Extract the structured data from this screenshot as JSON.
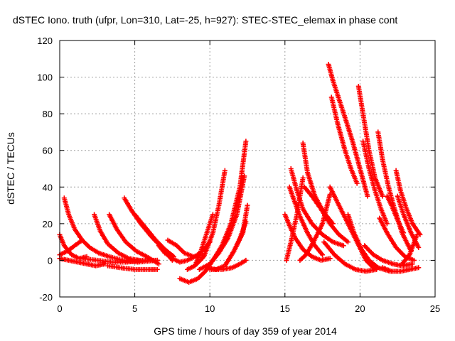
{
  "chart_data": {
    "type": "scatter",
    "title": "dSTEC Iono. truth (ufpr, Lon=310, Lat=-25, h=927): STEC-STEC_elemax in phase cont",
    "xlabel": "GPS time / hours of day 359 of year 2014",
    "ylabel": "dSTEC  / TECUs",
    "xlim": [
      0,
      25
    ],
    "ylim": [
      -20,
      120
    ],
    "xticks": [
      0,
      5,
      10,
      15,
      20,
      25
    ],
    "yticks": [
      -20,
      0,
      20,
      40,
      60,
      80,
      100,
      120
    ],
    "grid": true,
    "marker": "+",
    "series_color": "#ff0000",
    "series": [
      {
        "x": [
          0.0,
          0.3,
          0.8,
          1.3,
          1.8
        ],
        "y": [
          14,
          8,
          3,
          1,
          2
        ]
      },
      {
        "x": [
          0.0,
          0.5,
          1.0,
          1.5
        ],
        "y": [
          3,
          5,
          8,
          11
        ]
      },
      {
        "x": [
          0.0,
          0.6,
          1.2,
          1.8,
          2.4,
          3.0
        ],
        "y": [
          1,
          0,
          -1,
          -2,
          -3,
          -2
        ]
      },
      {
        "x": [
          0.3,
          0.6,
          1.0,
          1.5,
          2.0,
          2.6,
          3.3,
          4.2,
          5.2,
          6.5
        ],
        "y": [
          34,
          25,
          17,
          11,
          7,
          4,
          2,
          0,
          -1,
          0
        ]
      },
      {
        "x": [
          2.3,
          2.7,
          3.2,
          3.9,
          4.6,
          5.3
        ],
        "y": [
          25,
          16,
          9,
          4,
          1,
          0
        ]
      },
      {
        "x": [
          3.3,
          3.8,
          4.4,
          5.1,
          5.8,
          6.6
        ],
        "y": [
          25,
          17,
          10,
          5,
          2,
          -2
        ]
      },
      {
        "x": [
          4.3,
          4.8,
          5.4,
          6.1,
          6.8,
          7.5
        ],
        "y": [
          34,
          27,
          20,
          13,
          7,
          0
        ]
      },
      {
        "x": [
          5.0,
          5.7,
          6.4,
          7.0,
          7.6
        ],
        "y": [
          25,
          18,
          11,
          6,
          2
        ]
      },
      {
        "x": [
          3.2,
          4.0,
          5.0,
          6.0,
          6.5
        ],
        "y": [
          -3,
          -4,
          -5,
          -5,
          -5
        ]
      },
      {
        "x": [
          1.5,
          2.5,
          3.5,
          4.5,
          5.5,
          6.5
        ],
        "y": [
          1,
          0,
          -1,
          -1,
          0,
          0
        ]
      },
      {
        "x": [
          6.6,
          7.0,
          7.5,
          8.0,
          8.5,
          9.0,
          9.5,
          10.0
        ],
        "y": [
          8,
          4,
          1,
          -1,
          0,
          2,
          5,
          10
        ]
      },
      {
        "x": [
          7.2,
          7.8,
          8.3,
          8.9,
          9.5
        ],
        "y": [
          11,
          8,
          4,
          2,
          3
        ]
      },
      {
        "x": [
          8.0,
          8.6,
          9.2,
          9.7,
          10.2,
          10.8,
          11.4,
          12.0,
          12.4
        ],
        "y": [
          -10,
          -12,
          -10,
          -6,
          0,
          8,
          20,
          40,
          65
        ]
      },
      {
        "x": [
          8.5,
          9.0,
          9.4,
          9.8,
          10.2
        ],
        "y": [
          -5,
          -3,
          5,
          15,
          25
        ]
      },
      {
        "x": [
          9.0,
          9.6,
          10.2,
          10.6,
          11.0
        ],
        "y": [
          -3,
          2,
          15,
          30,
          49
        ]
      },
      {
        "x": [
          9.3,
          10.0,
          10.6,
          11.2,
          11.8,
          12.3
        ],
        "y": [
          -5,
          -2,
          4,
          12,
          25,
          46
        ]
      },
      {
        "x": [
          9.8,
          10.4,
          11.0,
          11.6,
          12.2,
          12.5
        ],
        "y": [
          -4,
          -5,
          -3,
          5,
          15,
          30
        ]
      },
      {
        "x": [
          10.0,
          10.8,
          11.5,
          12.0,
          12.4
        ],
        "y": [
          -5,
          -5,
          -4,
          -2,
          0
        ]
      },
      {
        "x": [
          11.0,
          11.6,
          12.0,
          12.4
        ],
        "y": [
          -3,
          5,
          12,
          21
        ]
      },
      {
        "x": [
          15.0,
          15.3,
          15.7,
          16.2,
          16.8,
          17.4,
          18.0
        ],
        "y": [
          25,
          19,
          12,
          6,
          2,
          0,
          1
        ]
      },
      {
        "x": [
          15.1,
          15.4,
          15.8,
          16.2
        ],
        "y": [
          0,
          10,
          25,
          45
        ]
      },
      {
        "x": [
          15.3,
          15.6,
          16.0,
          16.5,
          17.0,
          17.5
        ],
        "y": [
          40,
          33,
          24,
          15,
          8,
          3
        ]
      },
      {
        "x": [
          15.4,
          15.8,
          16.2,
          16.8,
          17.5,
          18.2,
          18.9
        ],
        "y": [
          50,
          38,
          28,
          20,
          14,
          10,
          8
        ]
      },
      {
        "x": [
          16.2,
          16.5,
          17.0,
          17.6,
          18.2
        ],
        "y": [
          64,
          48,
          35,
          26,
          20
        ]
      },
      {
        "x": [
          16.0,
          16.4,
          16.9,
          17.5,
          18.0
        ],
        "y": [
          0,
          3,
          10,
          20,
          36
        ]
      },
      {
        "x": [
          16.3,
          16.8,
          17.4,
          18.0,
          18.6,
          19.2
        ],
        "y": [
          40,
          35,
          28,
          20,
          14,
          10
        ]
      },
      {
        "x": [
          17.9,
          18.2,
          18.6,
          19.0,
          19.5,
          20.0,
          20.5
        ],
        "y": [
          107,
          98,
          88,
          78,
          65,
          50,
          35
        ]
      },
      {
        "x": [
          18.1,
          18.5,
          19.0,
          19.4,
          19.8
        ],
        "y": [
          89,
          75,
          60,
          50,
          42
        ]
      },
      {
        "x": [
          18.0,
          18.6,
          19.2,
          19.8,
          20.4,
          21.0
        ],
        "y": [
          40,
          30,
          20,
          10,
          0,
          -5
        ]
      },
      {
        "x": [
          19.9,
          20.2,
          20.6,
          21.0,
          21.5
        ],
        "y": [
          95,
          80,
          60,
          45,
          35
        ]
      },
      {
        "x": [
          20.2,
          20.6,
          21.0,
          21.4,
          21.8
        ],
        "y": [
          65,
          50,
          38,
          28,
          20
        ]
      },
      {
        "x": [
          19.2,
          19.6,
          20.1,
          20.6,
          21.2,
          22.0
        ],
        "y": [
          25,
          15,
          6,
          0,
          -4,
          -6
        ]
      },
      {
        "x": [
          21.2,
          21.5,
          21.9,
          22.3,
          22.8,
          23.4
        ],
        "y": [
          70,
          55,
          40,
          28,
          15,
          5
        ]
      },
      {
        "x": [
          21.3,
          21.8,
          22.4,
          23.0,
          23.6
        ],
        "y": [
          23,
          15,
          7,
          2,
          0
        ]
      },
      {
        "x": [
          21.8,
          22.1,
          22.5,
          22.9
        ],
        "y": [
          35,
          30,
          22,
          15
        ]
      },
      {
        "x": [
          22.4,
          22.7,
          23.1,
          23.5,
          24.0
        ],
        "y": [
          49,
          38,
          28,
          20,
          14
        ]
      },
      {
        "x": [
          22.5,
          22.9,
          23.4,
          23.9
        ],
        "y": [
          35,
          25,
          15,
          7
        ]
      },
      {
        "x": [
          21.5,
          22.1,
          22.7,
          23.3,
          23.9
        ],
        "y": [
          -4,
          -6,
          -6,
          -5,
          -4
        ]
      },
      {
        "x": [
          22.8,
          23.3,
          23.8
        ],
        "y": [
          -2,
          3,
          14
        ]
      },
      {
        "x": [
          17.6,
          18.3,
          19.0,
          19.7,
          20.4,
          21.1
        ],
        "y": [
          10,
          3,
          -2,
          -5,
          -6,
          -5
        ]
      },
      {
        "x": [
          20.3,
          20.9,
          21.5,
          22.2,
          22.8,
          23.5
        ],
        "y": [
          8,
          3,
          0,
          -2,
          -3,
          -2
        ]
      }
    ]
  }
}
